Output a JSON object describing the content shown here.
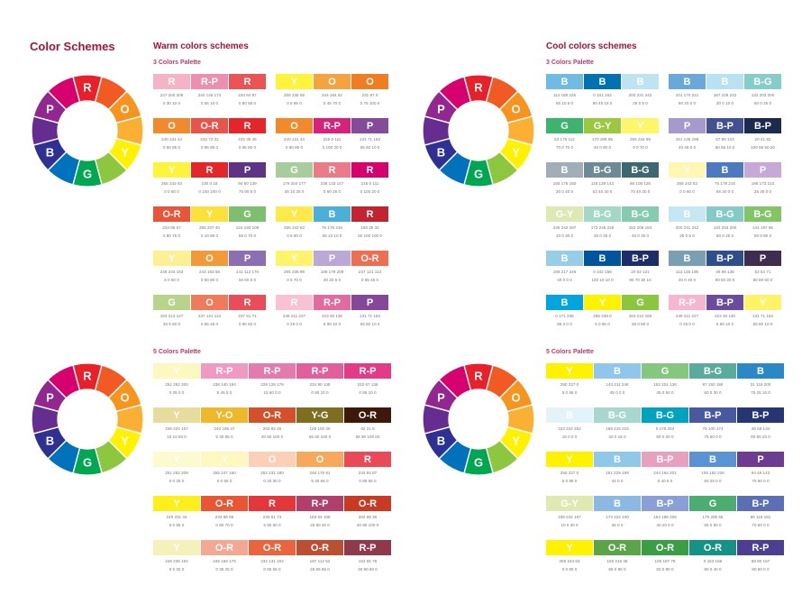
{
  "title": "Color Schemes",
  "warm": {
    "heading": "Warm colors schemes",
    "three_label": "3 Colors Palette",
    "five_label": "5 Colors Palette"
  },
  "cool": {
    "heading": "Cool colors schemes",
    "three_label": "3 Colors Palette",
    "five_label": "5 Colors Palette"
  },
  "wheel": {
    "segments": [
      {
        "label": "R",
        "color": "#e8202a"
      },
      {
        "label": "",
        "color": "#f15a22"
      },
      {
        "label": "O",
        "color": "#f7941d"
      },
      {
        "label": "",
        "color": "#fbb034"
      },
      {
        "label": "Y",
        "color": "#fff200"
      },
      {
        "label": "",
        "color": "#8dc63f"
      },
      {
        "label": "G",
        "color": "#00a651"
      },
      {
        "label": "",
        "color": "#0072bc"
      },
      {
        "label": "B",
        "color": "#2e3192"
      },
      {
        "label": "",
        "color": "#662d91"
      },
      {
        "label": "P",
        "color": "#92278f"
      },
      {
        "label": "",
        "color": "#d6006f"
      }
    ]
  },
  "warm_three": [
    {
      "cells": [
        {
          "l": "R",
          "c": "#f5b4c5",
          "v": "247 200 206\n0 30 10 0"
        },
        {
          "l": "R-P",
          "c": "#ec8fae",
          "v": "240 146 174\n0 55 10 0"
        },
        {
          "l": "R",
          "c": "#ea5455",
          "v": "234 84 87\n0 80 55 0"
        }
      ]
    },
    {
      "cells": [
        {
          "l": "Y",
          "c": "#fff33b",
          "v": "255 235 59\n0 5 85 0"
        },
        {
          "l": "O",
          "c": "#f4a340",
          "v": "244 164 82\n0 45 70 0"
        },
        {
          "l": "O",
          "c": "#ef7d22",
          "v": "231 87 0\n0 75 100 0"
        }
      ]
    },
    {
      "cells": [
        {
          "l": "O",
          "c": "#f08a2c",
          "v": "240 131 44\n0 60 85 0"
        },
        {
          "l": "O-R",
          "c": "#e8534a",
          "v": "233 72 22\n0 85 95 0"
        },
        {
          "l": "R",
          "c": "#e4262b",
          "v": "232 36 46\n0 95 80 0"
        }
      ]
    },
    {
      "cells": [
        {
          "l": "O",
          "c": "#f08a2c",
          "v": "240 131 44\n0 60 85 0"
        },
        {
          "l": "R-P",
          "c": "#d6227a",
          "v": "225 0 111\n0 100 20 0"
        },
        {
          "l": "P",
          "c": "#864a9a",
          "v": "131 71 153\n65 80 10 0"
        }
      ]
    },
    {
      "cells": [
        {
          "l": "Y",
          "c": "#fff33b",
          "v": "255 243 63\n0 0 80 0"
        },
        {
          "l": "R",
          "c": "#e4262b",
          "v": "230 0 18\n0 100 100 0"
        },
        {
          "l": "P",
          "c": "#5e3386",
          "v": "94 50 139\n75 90 5 0"
        }
      ]
    },
    {
      "cells": [
        {
          "l": "G",
          "c": "#a9cc9d",
          "v": "179 204 177\n35 10 35 0"
        },
        {
          "l": "R",
          "c": "#ec7b8a",
          "v": "238 133 147\n0 60 25 0"
        },
        {
          "l": "R",
          "c": "#d7006f",
          "v": "215 0 111\n0 100 20 0"
        }
      ]
    },
    {
      "cells": [
        {
          "l": "O-R",
          "c": "#ea5539",
          "v": "234 85 57\n0 80 75 0"
        },
        {
          "l": "Y",
          "c": "#fce13a",
          "v": "255 237 40\n0 10 85 0"
        },
        {
          "l": "G",
          "c": "#7dbf6e",
          "v": "124 193 109\n55 0 70 0"
        }
      ]
    },
    {
      "cells": [
        {
          "l": "Y",
          "c": "#ffea49",
          "v": "255 243 63\n0 5 80 0"
        },
        {
          "l": "B",
          "c": "#4bafd7",
          "v": "75 178 216\n65 10 10 0"
        },
        {
          "l": "R",
          "c": "#c3222f",
          "v": "193 25 32\n25 100 100 0"
        }
      ]
    },
    {
      "cells": [
        {
          "l": "Y",
          "c": "#fdf094",
          "v": "248 243 153\n5 0 50 0"
        },
        {
          "l": "O",
          "c": "#f29a38",
          "v": "243 153 58\n0 50 80 0"
        },
        {
          "l": "P",
          "c": "#8b6fb0",
          "v": "141 112 170\n50 60 5 0"
        }
      ]
    },
    {
      "cells": [
        {
          "l": "Y",
          "c": "#fff46b",
          "v": "255 235 99\n0 5 70 0"
        },
        {
          "l": "P",
          "c": "#baa8d6",
          "v": "188 179 209\n30 30 5 0"
        },
        {
          "l": "O-R",
          "c": "#ee6e52",
          "v": "237 121 113\n0 65 45 0"
        }
      ]
    },
    {
      "cells": [
        {
          "l": "G",
          "c": "#b7d48a",
          "v": "183 213 127\n30 5 60 0"
        },
        {
          "l": "O",
          "c": "#ef7b5b",
          "v": "237 121 113\n0 65 45 0"
        },
        {
          "l": "R",
          "c": "#ea4d5a",
          "v": "237 51 71\n0 90 60 0"
        }
      ]
    },
    {
      "cells": [
        {
          "l": "R",
          "c": "#f8c2d2",
          "v": "249 211 227\n0 25 0 0"
        },
        {
          "l": "R-P",
          "c": "#e26a9c",
          "v": "223 48 130\n5 90 10 0"
        },
        {
          "l": "P",
          "c": "#854797",
          "v": "131 71 153\n65 80 10 0"
        }
      ]
    }
  ],
  "cool_three": [
    {
      "cells": [
        {
          "l": "B",
          "c": "#6fbbe2",
          "v": "114 188 225\n55 10 5 0"
        },
        {
          "l": "B",
          "c": "#0071b1",
          "v": "0 101 163\n90 45 15 0"
        },
        {
          "l": "B",
          "c": "#bfe3f1",
          "v": "200 231 242\n25 0 5 0"
        }
      ]
    },
    {
      "cells": [
        {
          "l": "B",
          "c": "#6aa8d9",
          "v": "101 170 221\n60 20 0 0"
        },
        {
          "l": "B",
          "c": "#b8e2f2",
          "v": "187 226 232\n30 0 10 0"
        },
        {
          "l": "B-G",
          "c": "#84cdc8",
          "v": "132 203 200\n50 0 25 0"
        }
      ]
    },
    {
      "cells": [
        {
          "l": "G",
          "c": "#3eb370",
          "v": "63 176 112\n70 0 70 0"
        },
        {
          "l": "G-Y",
          "c": "#9bc83e",
          "v": "170 206 55\n40 0 90 0"
        },
        {
          "l": "Y",
          "c": "#fff568",
          "v": "255 244 99\n0 0 70 0"
        }
      ]
    },
    {
      "cells": [
        {
          "l": "P",
          "c": "#a59acb",
          "v": "161 145 196\n40 45 0 0"
        },
        {
          "l": "B-P",
          "c": "#43518f",
          "v": "67 90 123\n80 65 15 0"
        },
        {
          "l": "B-P",
          "c": "#1c2a4f",
          "v": "20 41 82\n100 95 50 20"
        }
      ]
    },
    {
      "cells": [
        {
          "l": "B",
          "c": "#a2aeb7",
          "v": "166 175 180\n30 0 40 0"
        },
        {
          "l": "B-G",
          "c": "#6c8b96",
          "v": "118 139 143\n63 40 40 0"
        },
        {
          "l": "B-G",
          "c": "#3d6872",
          "v": "68 105 125\n70 40 30 0"
        }
      ]
    },
    {
      "cells": [
        {
          "l": "Y",
          "c": "#fff7b2",
          "v": "255 243 63\n0 0 80 0"
        },
        {
          "l": "B",
          "c": "#4c79bf",
          "v": "75 178 216\n65 30 0 0"
        },
        {
          "l": "P",
          "c": "#c6a9d6",
          "v": "198 173 210\n25 35 0 0"
        }
      ]
    },
    {
      "cells": [
        {
          "l": "G-Y",
          "c": "#dde8b4",
          "v": "236 242 197\n10 0 30 0"
        },
        {
          "l": "B-G",
          "c": "#a3d8c6",
          "v": "173 246 226\n35 0 25 0"
        },
        {
          "l": "B-G",
          "c": "#84cbb0",
          "v": "153 208 184\n45 0 35 0"
        }
      ]
    },
    {
      "cells": [
        {
          "l": "B",
          "c": "#c5e7f4",
          "v": "200 231 242\n25 0 5 0"
        },
        {
          "l": "B-G",
          "c": "#84cbc8",
          "v": "132 203 200\n50 0 25 0"
        },
        {
          "l": "B-G",
          "c": "#82c466",
          "v": "141 197 66\n50 0 80 0"
        }
      ]
    },
    {
      "cells": [
        {
          "l": "B",
          "c": "#98cde7",
          "v": "159 217 246\n40 0 0 0"
        },
        {
          "l": "B",
          "c": "#00559e",
          "v": "0 342 158\n100 10 10 0"
        },
        {
          "l": "B-P",
          "c": "#1c2d6a",
          "v": "20 52 121\n90 70 30 10"
        }
      ]
    },
    {
      "cells": [
        {
          "l": "B",
          "c": "#7a9eb2",
          "v": "113 135 195\n40 0 40 0"
        },
        {
          "l": "B-P",
          "c": "#2e4f8a",
          "v": "46 68 138\n90 60 20 0"
        },
        {
          "l": "P",
          "c": "#3e2d51",
          "v": "62 54 71\n80 80 60 0"
        }
      ]
    },
    {
      "cells": [
        {
          "l": "B",
          "c": "#00a5dd",
          "v": "0 171 235\n85 0 0 0"
        },
        {
          "l": "Y",
          "c": "#fff200",
          "v": "255 238 0\n5 0 95 0"
        },
        {
          "l": "G",
          "c": "#8cc63f",
          "v": "163 212 180\n35 0 80 0"
        }
      ]
    },
    {
      "cells": [
        {
          "l": "R-P",
          "c": "#f6b6ce",
          "v": "249 211 227\n0 25 0 0"
        },
        {
          "l": "B-P",
          "c": "#6a4c9c",
          "v": "223 48 130\n5 90 10 0"
        },
        {
          "l": "Y",
          "c": "#fff367",
          "v": "131 71 153\n65 80 10 0"
        }
      ]
    }
  ],
  "warm_five": [
    {
      "cells": [
        {
          "l": "Y",
          "c": "#fdf8c0",
          "v": "251 252 200\n0 25 0 0"
        },
        {
          "l": "R-P",
          "c": "#ef9bc1",
          "v": "236 140 194\n5 45 5 0"
        },
        {
          "l": "R-P",
          "c": "#e47bae",
          "v": "228 128 178\n15 60 0 0"
        },
        {
          "l": "R-P",
          "c": "#e15f9c",
          "v": "234 90 148\n0 80 10 0"
        },
        {
          "l": "R-P",
          "c": "#e43b86",
          "v": "232 67 136\n0 85 10 0"
        }
      ]
    },
    {
      "cells": [
        {
          "l": "Y",
          "c": "#e6dc9b",
          "v": "236 224 167\n10 10 50 0"
        },
        {
          "l": "Y-O",
          "c": "#efb82a",
          "v": "240 185 47\n5 30 85 0"
        },
        {
          "l": "O-R",
          "c": "#d2512b",
          "v": "203 82 25\n20 80 100 0"
        },
        {
          "l": "Y-G",
          "c": "#7e6e1f",
          "v": "128 102 40\n55 60 100 0"
        },
        {
          "l": "O-R",
          "c": "#3e180b",
          "v": "62 21 8\n65 90 100 60"
        }
      ]
    },
    {
      "cells": [
        {
          "l": "Y",
          "c": "#fcfbd0",
          "v": "251 252 209\n0 0 25 0"
        },
        {
          "l": "Y",
          "c": "#fff7c0",
          "v": "255 247 160\n0 0 55 0"
        },
        {
          "l": "O",
          "c": "#fbd0b6",
          "v": "252 231 180\n0 20 30 0"
        },
        {
          "l": "O",
          "c": "#f6a95d",
          "v": "246 176 91\n5 40 65 0"
        },
        {
          "l": "R",
          "c": "#ea4a57",
          "v": "234 84 87\n0 85 55 0"
        }
      ]
    },
    {
      "cells": [
        {
          "l": "Y",
          "c": "#fcef1a",
          "v": "249 231 44\n5 5 85 0"
        },
        {
          "l": "O-R",
          "c": "#ea5534",
          "v": "234 85 65\n0 80 70 0"
        },
        {
          "l": "R",
          "c": "#e4373c",
          "v": "225 51 74\n5 90 60 0"
        },
        {
          "l": "R-P",
          "c": "#b23f6a",
          "v": "183 54 108\n25 90 30 0"
        },
        {
          "l": "O-R",
          "c": "#c73a24",
          "v": "204 58 36\n20 90 100 0"
        }
      ]
    },
    {
      "cells": [
        {
          "l": "Y",
          "c": "#f5f1bb",
          "v": "246 239 194\n5 5 30 0"
        },
        {
          "l": "O-R",
          "c": "#f3a893",
          "v": "246 168 176\n0 35 25 0"
        },
        {
          "l": "O-R",
          "c": "#ea643f",
          "v": "232 131 102\n0 65 55 0"
        },
        {
          "l": "O-R",
          "c": "#bb4f32",
          "v": "187 112 52\n25 65 85 0"
        },
        {
          "l": "R-P",
          "c": "#8f3a4c",
          "v": "153 55 78\n45 90 60 0"
        }
      ]
    }
  ],
  "cool_five": [
    {
      "cells": [
        {
          "l": "Y",
          "c": "#fff200",
          "v": "250 237 0\n5 0 95 0"
        },
        {
          "l": "B",
          "c": "#8fc6ea",
          "v": "143 211 246\n45 0 0 0"
        },
        {
          "l": "G",
          "c": "#86c780",
          "v": "152 201 136\n45 0 50 0"
        },
        {
          "l": "B-G",
          "c": "#5aab9c",
          "v": "97 150 166\n60 0 30 0"
        },
        {
          "l": "B",
          "c": "#2b88c6",
          "v": "31 118 200\n75 25 10 0"
        }
      ]
    },
    {
      "cells": [
        {
          "l": "B",
          "c": "#e3f3fa",
          "v": "223 242 252\n15 0 0 0"
        },
        {
          "l": "B-G",
          "c": "#a8d7cf",
          "v": "188 215 215\n30 0 15 0"
        },
        {
          "l": "B-G",
          "c": "#00a3bd",
          "v": "0 175 204\n80 0 20 0"
        },
        {
          "l": "B-P",
          "c": "#48599f",
          "v": "79 100 174\n75 60 0 0"
        },
        {
          "l": "B-P",
          "c": "#253673",
          "v": "45 68 134\n90 80 20 0"
        }
      ]
    },
    {
      "cells": [
        {
          "l": "Y",
          "c": "#fff200",
          "v": "250 237 0\n5 0 95 0"
        },
        {
          "l": "B",
          "c": "#90c8ea",
          "v": "151 229 199\n44 0 0"
        },
        {
          "l": "B-P",
          "c": "#e7a1bf",
          "v": "244 164 201\n0 40 5 0"
        },
        {
          "l": "B",
          "c": "#5a93d4",
          "v": "105 162 226\n60 25 0 0"
        },
        {
          "l": "P",
          "c": "#6b3c90",
          "v": "94 49 143\n75 90 0 0"
        }
      ]
    },
    {
      "cells": [
        {
          "l": "G-Y",
          "c": "#dfe9b1",
          "v": "236 242 197\n10 0 30 0"
        },
        {
          "l": "B",
          "c": "#8cb9e3",
          "v": "173 222 240\n35 0 0"
        },
        {
          "l": "B-P",
          "c": "#8a9fd6",
          "v": "163 188 206\n40 20 0 0"
        },
        {
          "l": "G",
          "c": "#4bae70",
          "v": "175 205 55\n65 0 60 0"
        },
        {
          "l": "B-P",
          "c": "#5c6fb5",
          "v": "85 118 181\n70 50 0 0"
        }
      ]
    },
    {
      "cells": [
        {
          "l": "Y",
          "c": "#fff200",
          "v": "255 243 63\n0 0 80 0"
        },
        {
          "l": "O-R",
          "c": "#5ca448",
          "v": "155 216 45\n65 0 85 0"
        },
        {
          "l": "O-R",
          "c": "#3b9e44",
          "v": "105 167 79\n60 0 90 0"
        },
        {
          "l": "O-R",
          "c": "#159286",
          "v": "0 153 168\n90 0 40 0"
        },
        {
          "l": "R-P",
          "c": "#4c3f92",
          "v": "68 90 157\n80 60 0 0"
        }
      ]
    }
  ]
}
